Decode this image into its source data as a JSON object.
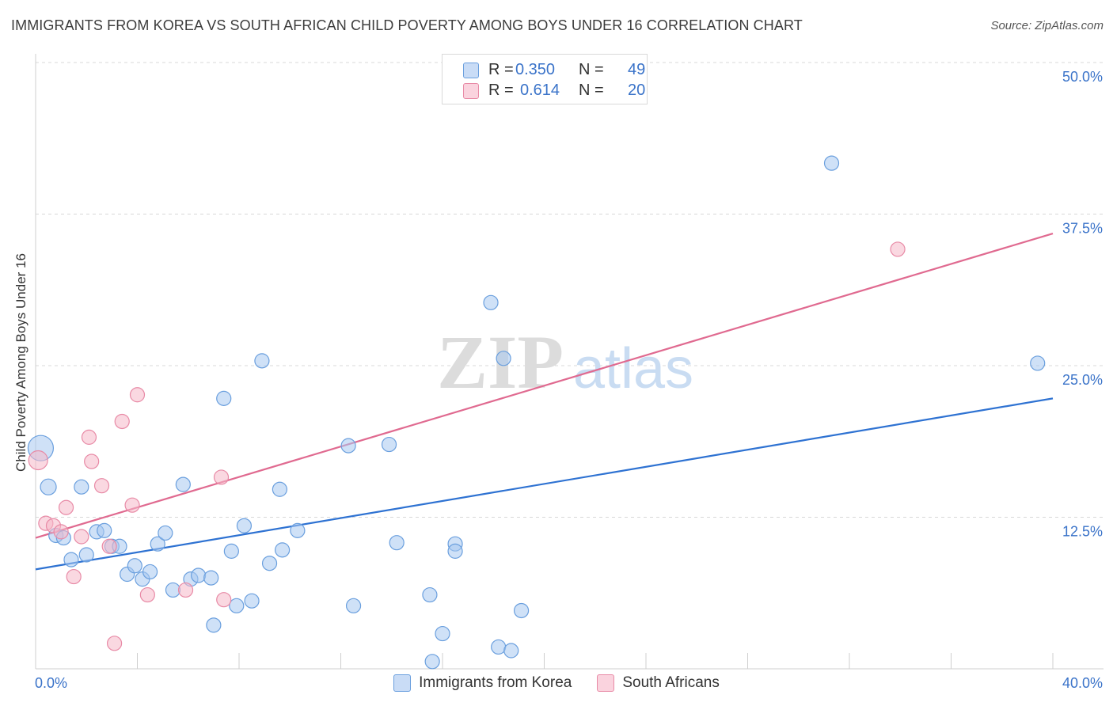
{
  "header": {
    "title": "IMMIGRANTS FROM KOREA VS SOUTH AFRICAN CHILD POVERTY AMONG BOYS UNDER 16 CORRELATION CHART",
    "source": "Source: ZipAtlas.com"
  },
  "watermark": {
    "zip": "ZIP",
    "atlas": "atlas"
  },
  "stats_legend": [
    {
      "r_label": "R =",
      "r_value": "0.350",
      "n_label": "N =",
      "n_value": "49",
      "color": "#a8c8f0"
    },
    {
      "r_label": "R =",
      "r_value": "0.614",
      "n_label": "N =",
      "n_value": "20",
      "color": "#f6b8c9"
    }
  ],
  "chart_data": {
    "type": "scatter",
    "title": "IMMIGRANTS FROM KOREA VS SOUTH AFRICAN CHILD POVERTY AMONG BOYS UNDER 16 CORRELATION CHART",
    "xlabel": "",
    "ylabel": "Child Poverty Among Boys Under 16",
    "xlim": [
      0,
      40
    ],
    "ylim": [
      0,
      50
    ],
    "x_tick_labels": [
      "0.0%",
      "40.0%"
    ],
    "y_ticks": [
      12.5,
      25.0,
      37.5,
      50.0
    ],
    "y_tick_labels": [
      "12.5%",
      "25.0%",
      "37.5%",
      "50.0%"
    ],
    "grid": "horizontal dashed",
    "legend_placement": "bottom",
    "series": [
      {
        "name": "Immigrants from Korea",
        "color": "#a8c8f0",
        "stroke": "#6a9fde",
        "line_color": "#2e72d2",
        "trend": [
          [
            0,
            8.2
          ],
          [
            40,
            22.3
          ]
        ],
        "points": [
          [
            0.2,
            18.2,
            16
          ],
          [
            0.5,
            15.0,
            10
          ],
          [
            0.8,
            11.0,
            9
          ],
          [
            1.1,
            10.8,
            9
          ],
          [
            1.4,
            9.0,
            9
          ],
          [
            1.8,
            15.0,
            9
          ],
          [
            2.0,
            9.4,
            9
          ],
          [
            2.4,
            11.3,
            9
          ],
          [
            2.7,
            11.4,
            9
          ],
          [
            3.0,
            10.1,
            9
          ],
          [
            3.3,
            10.1,
            9
          ],
          [
            3.6,
            7.8,
            9
          ],
          [
            3.9,
            8.5,
            9
          ],
          [
            4.2,
            7.4,
            9
          ],
          [
            4.5,
            8.0,
            9
          ],
          [
            4.8,
            10.3,
            9
          ],
          [
            5.1,
            11.2,
            9
          ],
          [
            5.4,
            6.5,
            9
          ],
          [
            5.8,
            15.2,
            9
          ],
          [
            6.1,
            7.4,
            9
          ],
          [
            6.4,
            7.7,
            9
          ],
          [
            6.9,
            7.5,
            9
          ],
          [
            7.0,
            3.6,
            9
          ],
          [
            7.4,
            22.3,
            9
          ],
          [
            7.7,
            9.7,
            9
          ],
          [
            7.9,
            5.2,
            9
          ],
          [
            8.2,
            11.8,
            9
          ],
          [
            8.5,
            5.6,
            9
          ],
          [
            8.9,
            25.4,
            9
          ],
          [
            9.2,
            8.7,
            9
          ],
          [
            9.6,
            14.8,
            9
          ],
          [
            9.7,
            9.8,
            9
          ],
          [
            10.3,
            11.4,
            9
          ],
          [
            12.3,
            18.4,
            9
          ],
          [
            12.5,
            5.2,
            9
          ],
          [
            13.9,
            18.5,
            9
          ],
          [
            14.2,
            10.4,
            9
          ],
          [
            15.5,
            6.1,
            9
          ],
          [
            15.6,
            0.6,
            9
          ],
          [
            16.0,
            2.9,
            9
          ],
          [
            16.5,
            10.3,
            9
          ],
          [
            16.5,
            9.7,
            9
          ],
          [
            17.9,
            30.2,
            9
          ],
          [
            18.2,
            1.8,
            9
          ],
          [
            18.4,
            25.6,
            9
          ],
          [
            18.7,
            1.5,
            9
          ],
          [
            19.1,
            4.8,
            9
          ],
          [
            31.3,
            41.7,
            9
          ],
          [
            39.4,
            25.2,
            9
          ]
        ]
      },
      {
        "name": "South Africans",
        "color": "#f6b8c9",
        "stroke": "#e88aa6",
        "line_color": "#e06a90",
        "trend": [
          [
            0,
            10.8
          ],
          [
            40,
            35.9
          ]
        ],
        "points": [
          [
            0.1,
            17.2,
            12
          ],
          [
            0.4,
            12.0,
            9
          ],
          [
            0.7,
            11.8,
            9
          ],
          [
            1.0,
            11.3,
            9
          ],
          [
            1.2,
            13.3,
            9
          ],
          [
            1.5,
            7.6,
            9
          ],
          [
            1.8,
            10.9,
            9
          ],
          [
            2.1,
            19.1,
            9
          ],
          [
            2.2,
            17.1,
            9
          ],
          [
            2.6,
            15.1,
            9
          ],
          [
            2.9,
            10.1,
            9
          ],
          [
            3.1,
            2.1,
            9
          ],
          [
            3.4,
            20.4,
            9
          ],
          [
            3.8,
            13.5,
            9
          ],
          [
            4.0,
            22.6,
            9
          ],
          [
            4.4,
            6.1,
            9
          ],
          [
            5.9,
            6.5,
            9
          ],
          [
            7.3,
            15.8,
            9
          ],
          [
            7.4,
            5.7,
            9
          ],
          [
            33.9,
            34.6,
            9
          ]
        ]
      }
    ]
  }
}
